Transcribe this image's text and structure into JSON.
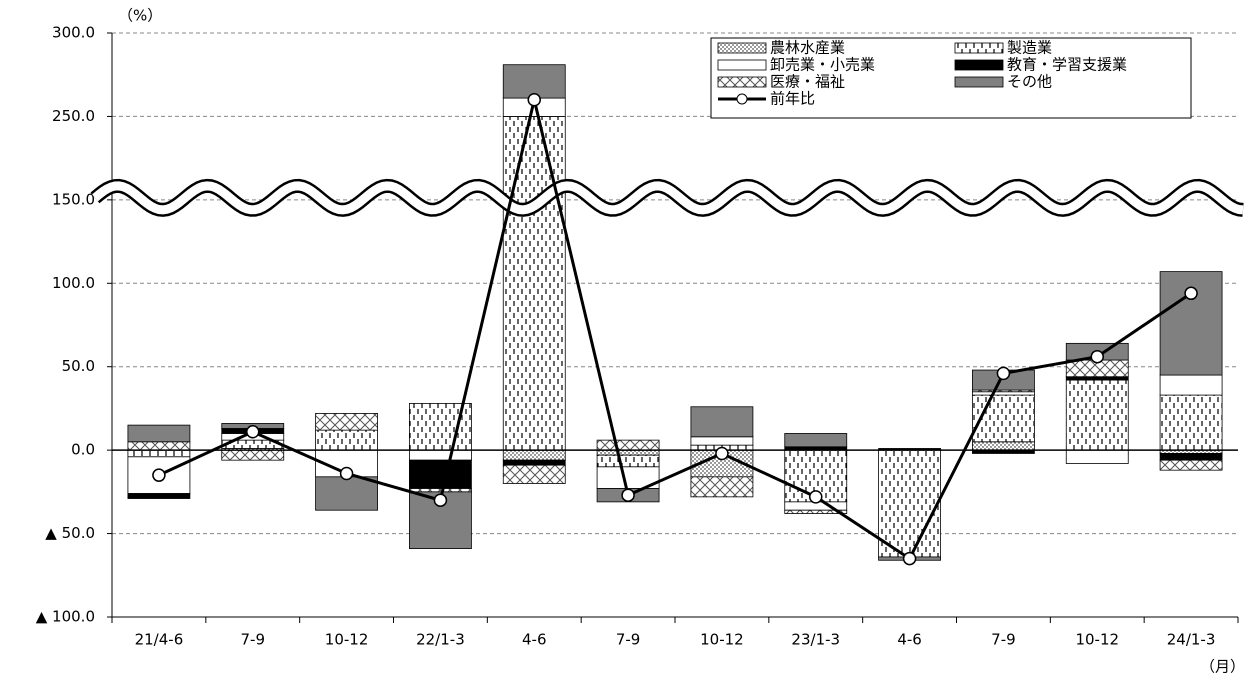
{
  "chart_data": {
    "type": "bar",
    "y_unit": "（%）",
    "x_unit": "（月）",
    "categories": [
      "21/4-6",
      "7-9",
      "10-12",
      "22/1-3",
      "4-6",
      "7-9",
      "10-12",
      "23/1-3",
      "4-6",
      "7-9",
      "10-12",
      "24/1-3"
    ],
    "ylim": [
      -100,
      300
    ],
    "y_break": [
      150,
      200
    ],
    "yticks": [
      {
        "value": 300,
        "label": "300.0"
      },
      {
        "value": 250,
        "label": "250.0"
      },
      {
        "value": 150,
        "label": "150.0"
      },
      {
        "value": 100,
        "label": "100.0"
      },
      {
        "value": 50,
        "label": "50.0"
      },
      {
        "value": 0,
        "label": "0.0"
      },
      {
        "value": -50,
        "label": "▲ 50.0"
      },
      {
        "value": -100,
        "label": "▲ 100.0"
      }
    ],
    "grid": true,
    "legend_position": "upper right",
    "series": [
      {
        "name": "農林水産業",
        "color": "#777777",
        "pattern": "dots",
        "values": [
          0,
          1,
          0,
          0,
          -6,
          -3,
          -16,
          0,
          0,
          5,
          0,
          -2
        ]
      },
      {
        "name": "製造業",
        "color": "#000000",
        "pattern": "dashes",
        "values": [
          -4,
          5,
          12,
          28,
          250,
          -7,
          3,
          -31,
          -64,
          28,
          42,
          33
        ]
      },
      {
        "name": "卸売業・小売業",
        "color": "#ffffff",
        "pattern": "none",
        "values": [
          -22,
          4,
          -16,
          -6,
          11,
          -13,
          5,
          -5,
          0,
          2,
          -8,
          12
        ]
      },
      {
        "name": "教育・学習支援業",
        "color": "#000000",
        "pattern": "none",
        "values": [
          -3,
          3,
          0,
          -17,
          -3,
          0,
          0,
          2,
          1,
          -2,
          2,
          -4
        ]
      },
      {
        "name": "医療・福祉",
        "color": "#555555",
        "pattern": "cross",
        "values": [
          5,
          -6,
          10,
          -2,
          -11,
          6,
          -12,
          -2,
          0,
          1,
          10,
          -6
        ]
      },
      {
        "name": "その他",
        "color": "#808080",
        "pattern": "none",
        "values": [
          10,
          3,
          -20,
          -34,
          20,
          -8,
          18,
          8,
          -2,
          12,
          10,
          62
        ]
      },
      {
        "name": "前年比",
        "type": "line",
        "color": "#000000",
        "values": [
          -15,
          11,
          -14,
          -30,
          260,
          -27,
          -2,
          -28,
          -65,
          46,
          56,
          94
        ]
      }
    ]
  }
}
